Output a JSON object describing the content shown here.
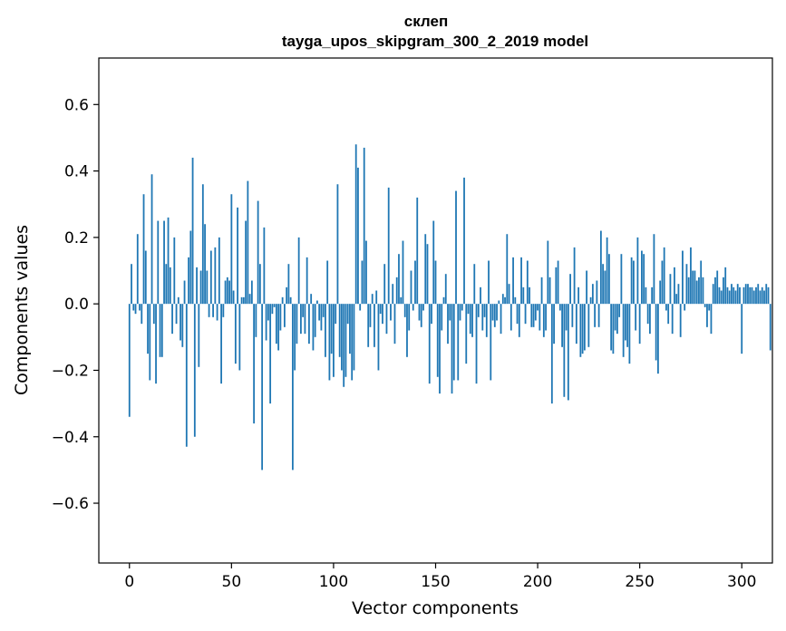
{
  "chart_data": {
    "type": "bar",
    "title": "склеп",
    "subtitle": "tayga_upos_skipgram_300_2_2019 model",
    "xlabel": "Vector components",
    "ylabel": "Components values",
    "xlim": [
      -15,
      315
    ],
    "ylim": [
      -0.78,
      0.74
    ],
    "xticks": [
      0,
      50,
      100,
      150,
      200,
      250,
      300
    ],
    "yticks": [
      -0.6,
      -0.4,
      -0.2,
      0.0,
      0.2,
      0.4,
      0.6
    ],
    "ytick_labels": [
      "−0.6",
      "−0.4",
      "−0.2",
      "0.0",
      "0.2",
      "0.4",
      "0.6"
    ],
    "xtick_labels": [
      "0",
      "50",
      "100",
      "150",
      "200",
      "250",
      "300"
    ],
    "bar_color": "#1f77b4",
    "values": [
      -0.34,
      0.12,
      -0.02,
      -0.03,
      0.21,
      -0.02,
      -0.06,
      0.33,
      0.16,
      -0.15,
      -0.23,
      0.39,
      -0.06,
      -0.24,
      0.25,
      -0.16,
      -0.16,
      0.25,
      0.12,
      0.26,
      0.11,
      -0.09,
      0.2,
      -0.06,
      0.02,
      -0.11,
      -0.13,
      0.07,
      -0.43,
      0.14,
      0.22,
      0.44,
      -0.4,
      0.11,
      -0.19,
      0.1,
      0.36,
      0.24,
      0.1,
      -0.04,
      0.16,
      -0.04,
      0.17,
      -0.05,
      0.2,
      -0.24,
      -0.04,
      0.07,
      0.08,
      0.07,
      0.33,
      0.04,
      -0.18,
      0.29,
      -0.2,
      0.02,
      0.02,
      0.25,
      0.37,
      0.03,
      0.07,
      -0.36,
      -0.1,
      0.31,
      0.12,
      -0.5,
      0.23,
      -0.11,
      -0.05,
      -0.3,
      -0.03,
      -0.01,
      -0.12,
      -0.14,
      -0.08,
      0.02,
      -0.07,
      0.05,
      0.12,
      0.02,
      -0.5,
      -0.2,
      -0.12,
      0.2,
      -0.09,
      -0.04,
      -0.09,
      0.14,
      -0.12,
      0.03,
      -0.14,
      -0.1,
      0.01,
      -0.05,
      -0.08,
      -0.04,
      -0.16,
      0.13,
      -0.23,
      -0.15,
      -0.22,
      -0.06,
      0.36,
      -0.16,
      -0.2,
      -0.25,
      -0.22,
      -0.06,
      -0.15,
      -0.23,
      -0.2,
      0.48,
      0.41,
      -0.02,
      0.13,
      0.47,
      0.19,
      -0.13,
      -0.07,
      0.03,
      -0.13,
      0.04,
      -0.2,
      -0.03,
      -0.06,
      0.12,
      -0.09,
      0.35,
      -0.05,
      0.06,
      -0.12,
      0.08,
      0.15,
      0.02,
      0.19,
      -0.04,
      -0.16,
      -0.08,
      0.1,
      -0.02,
      0.13,
      0.32,
      -0.05,
      -0.07,
      -0.02,
      0.21,
      0.18,
      -0.24,
      -0.06,
      0.25,
      0.13,
      -0.22,
      -0.27,
      -0.08,
      0.02,
      0.09,
      -0.12,
      -0.05,
      -0.27,
      -0.23,
      0.34,
      -0.23,
      -0.05,
      -0.02,
      0.38,
      -0.18,
      -0.03,
      -0.09,
      -0.1,
      0.12,
      -0.24,
      -0.04,
      0.05,
      -0.08,
      -0.04,
      -0.1,
      0.13,
      -0.23,
      -0.05,
      -0.07,
      -0.05,
      0.01,
      -0.09,
      0.03,
      0.02,
      0.21,
      0.06,
      -0.08,
      0.14,
      0.02,
      -0.06,
      -0.1,
      0.14,
      0.05,
      -0.06,
      0.13,
      0.05,
      -0.07,
      -0.07,
      -0.05,
      -0.02,
      -0.08,
      0.08,
      -0.1,
      -0.08,
      0.19,
      0.08,
      -0.3,
      -0.12,
      0.11,
      0.13,
      -0.02,
      -0.13,
      -0.28,
      -0.08,
      -0.29,
      0.09,
      -0.07,
      0.17,
      -0.12,
      0.05,
      -0.16,
      -0.15,
      -0.14,
      0.1,
      -0.13,
      0.02,
      0.06,
      -0.07,
      0.07,
      -0.07,
      0.22,
      0.12,
      0.1,
      0.2,
      0.15,
      -0.14,
      -0.15,
      -0.08,
      -0.09,
      -0.04,
      0.15,
      -0.16,
      -0.11,
      -0.13,
      -0.18,
      0.14,
      0.13,
      -0.08,
      0.2,
      -0.12,
      0.16,
      0.15,
      0.05,
      -0.06,
      -0.09,
      0.05,
      0.21,
      -0.17,
      -0.21,
      0.07,
      0.13,
      0.17,
      -0.02,
      -0.06,
      0.09,
      -0.09,
      0.11,
      0.03,
      0.06,
      -0.1,
      0.16,
      -0.02,
      0.12,
      0.08,
      0.17,
      0.1,
      0.1,
      0.07,
      0.08,
      0.13,
      0.08,
      -0.01,
      -0.07,
      -0.02,
      -0.09,
      0.06,
      0.08,
      0.1,
      0.05,
      0.04,
      0.08,
      0.11,
      0.05,
      0.04,
      0.06,
      0.05,
      0.04,
      0.06,
      0.05,
      -0.15,
      0.05,
      0.06,
      0.06,
      0.05,
      0.05,
      0.04,
      0.05,
      0.06,
      0.04,
      0.05,
      0.04,
      0.06,
      0.05,
      -0.14
    ]
  }
}
